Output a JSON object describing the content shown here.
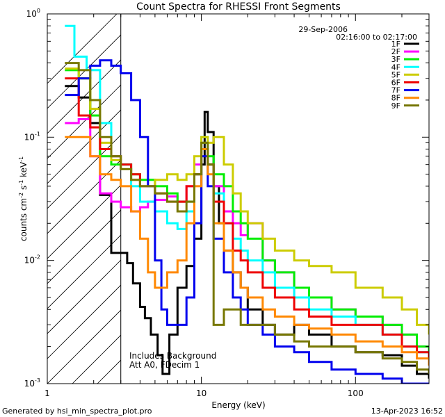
{
  "chart_data": {
    "type": "line",
    "title": "Count Spectra for RHESSI Front Segments",
    "xlabel": "Energy (keV)",
    "ylabel_parts": [
      "counts cm",
      "-2",
      " s",
      "-1",
      " keV",
      "-1"
    ],
    "x_scale": "log",
    "y_scale": "log",
    "xlim": [
      1,
      300
    ],
    "ylim": [
      0.001,
      1
    ],
    "x_ticks": [
      {
        "value": 1,
        "label": "1"
      },
      {
        "value": 10,
        "label": "10"
      },
      {
        "value": 100,
        "label": "100"
      }
    ],
    "y_ticks": [
      {
        "value": 1,
        "label": "10",
        "exp": "0"
      },
      {
        "value": 0.1,
        "label": "10",
        "exp": "-1"
      },
      {
        "value": 0.01,
        "label": "10",
        "exp": "-2"
      },
      {
        "value": 0.001,
        "label": "10",
        "exp": "-3"
      }
    ],
    "date_label": "29-Sep-2006",
    "time_range_label": "02:16:00 to 02:17:00",
    "annotations": [
      "Includes Background",
      "Att A0, FDecim 1"
    ],
    "hatched_region_max_energy": 3,
    "series": [
      {
        "name": "1F",
        "color": "#000000",
        "values": [
          [
            1.3,
            0.26
          ],
          [
            1.6,
            0.21
          ],
          [
            1.9,
            0.13
          ],
          [
            2.2,
            0.034
          ],
          [
            2.6,
            0.0115
          ],
          [
            3,
            0.0115
          ],
          [
            3.3,
            0.0095
          ],
          [
            3.6,
            0.0065
          ],
          [
            4,
            0.0042
          ],
          [
            4.3,
            0.0034
          ],
          [
            4.7,
            0.0025
          ],
          [
            5.2,
            0.0017
          ],
          [
            5.6,
            0.0012
          ],
          [
            6.2,
            0.0025
          ],
          [
            7,
            0.006
          ],
          [
            8,
            0.009
          ],
          [
            9,
            0.015
          ],
          [
            10,
            0.06
          ],
          [
            10.5,
            0.16
          ],
          [
            11,
            0.11
          ],
          [
            12,
            0.04
          ],
          [
            13,
            0.02
          ],
          [
            14,
            0.012
          ],
          [
            16,
            0.008
          ],
          [
            18,
            0.006
          ],
          [
            20,
            0.004
          ],
          [
            25,
            0.003
          ],
          [
            30,
            0.0025
          ],
          [
            40,
            0.003
          ],
          [
            50,
            0.0025
          ],
          [
            70,
            0.002
          ],
          [
            100,
            0.0018
          ],
          [
            150,
            0.0017
          ],
          [
            200,
            0.0014
          ],
          [
            250,
            0.0012
          ],
          [
            300,
            0.0011
          ]
        ]
      },
      {
        "name": "2F",
        "color": "#ff00ff",
        "values": [
          [
            1.3,
            0.13
          ],
          [
            1.6,
            0.14
          ],
          [
            1.9,
            0.07
          ],
          [
            2.2,
            0.035
          ],
          [
            2.6,
            0.03
          ],
          [
            3,
            0.027
          ],
          [
            3.5,
            0.025
          ],
          [
            4,
            0.027
          ],
          [
            4.5,
            0.03
          ],
          [
            5,
            0.031
          ],
          [
            6,
            0.033
          ],
          [
            7,
            0.03
          ],
          [
            8,
            0.04
          ],
          [
            9,
            0.06
          ],
          [
            10,
            0.09
          ],
          [
            11,
            0.06
          ],
          [
            12,
            0.04
          ],
          [
            14,
            0.025
          ],
          [
            16,
            0.02
          ],
          [
            18,
            0.016
          ],
          [
            20,
            0.02
          ],
          [
            25,
            0.01
          ],
          [
            30,
            0.008
          ],
          [
            40,
            0.005
          ],
          [
            50,
            0.005
          ],
          [
            70,
            0.004
          ],
          [
            100,
            0.0035
          ],
          [
            150,
            0.003
          ],
          [
            200,
            0.0025
          ],
          [
            250,
            0.002
          ],
          [
            300,
            0.0018
          ]
        ]
      },
      {
        "name": "3F",
        "color": "#00ee00",
        "values": [
          [
            1.3,
            0.35
          ],
          [
            1.6,
            0.3
          ],
          [
            1.9,
            0.15
          ],
          [
            2.2,
            0.07
          ],
          [
            2.6,
            0.06
          ],
          [
            3,
            0.06
          ],
          [
            3.5,
            0.05
          ],
          [
            4,
            0.045
          ],
          [
            5,
            0.04
          ],
          [
            6,
            0.035
          ],
          [
            7,
            0.03
          ],
          [
            8,
            0.03
          ],
          [
            9,
            0.05
          ],
          [
            10,
            0.09
          ],
          [
            11,
            0.07
          ],
          [
            12,
            0.05
          ],
          [
            14,
            0.04
          ],
          [
            16,
            0.025
          ],
          [
            18,
            0.02
          ],
          [
            20,
            0.015
          ],
          [
            25,
            0.01
          ],
          [
            30,
            0.008
          ],
          [
            40,
            0.006
          ],
          [
            50,
            0.005
          ],
          [
            70,
            0.004
          ],
          [
            100,
            0.0035
          ],
          [
            150,
            0.003
          ],
          [
            200,
            0.0025
          ],
          [
            250,
            0.002
          ],
          [
            300,
            0.0018
          ]
        ]
      },
      {
        "name": "4F",
        "color": "#00ffff",
        "values": [
          [
            1.3,
            0.8
          ],
          [
            1.5,
            0.45
          ],
          [
            1.8,
            0.35
          ],
          [
            2.2,
            0.13
          ],
          [
            2.6,
            0.07
          ],
          [
            3,
            0.06
          ],
          [
            3.5,
            0.04
          ],
          [
            4,
            0.03
          ],
          [
            5,
            0.025
          ],
          [
            6,
            0.02
          ],
          [
            7,
            0.018
          ],
          [
            8,
            0.025
          ],
          [
            9,
            0.05
          ],
          [
            10,
            0.1
          ],
          [
            11,
            0.06
          ],
          [
            12,
            0.035
          ],
          [
            14,
            0.02
          ],
          [
            16,
            0.015
          ],
          [
            18,
            0.012
          ],
          [
            20,
            0.01
          ],
          [
            25,
            0.008
          ],
          [
            30,
            0.006
          ],
          [
            40,
            0.005
          ],
          [
            50,
            0.004
          ],
          [
            70,
            0.0035
          ],
          [
            100,
            0.003
          ],
          [
            150,
            0.0025
          ],
          [
            200,
            0.002
          ],
          [
            250,
            0.0018
          ],
          [
            300,
            0.0015
          ]
        ]
      },
      {
        "name": "5F",
        "color": "#cccc00",
        "values": [
          [
            1.3,
            0.36
          ],
          [
            1.6,
            0.3
          ],
          [
            1.9,
            0.17
          ],
          [
            2.2,
            0.09
          ],
          [
            2.6,
            0.065
          ],
          [
            3,
            0.055
          ],
          [
            3.5,
            0.045
          ],
          [
            4,
            0.04
          ],
          [
            5,
            0.045
          ],
          [
            6,
            0.05
          ],
          [
            7,
            0.045
          ],
          [
            8,
            0.05
          ],
          [
            9,
            0.07
          ],
          [
            10,
            0.1
          ],
          [
            11,
            0.09
          ],
          [
            12,
            0.1
          ],
          [
            14,
            0.06
          ],
          [
            16,
            0.035
          ],
          [
            18,
            0.025
          ],
          [
            20,
            0.02
          ],
          [
            25,
            0.015
          ],
          [
            30,
            0.012
          ],
          [
            40,
            0.01
          ],
          [
            50,
            0.009
          ],
          [
            70,
            0.008
          ],
          [
            100,
            0.006
          ],
          [
            150,
            0.005
          ],
          [
            200,
            0.004
          ],
          [
            250,
            0.003
          ],
          [
            300,
            0.0025
          ]
        ]
      },
      {
        "name": "6F",
        "color": "#ee0000",
        "values": [
          [
            1.3,
            0.3
          ],
          [
            1.6,
            0.15
          ],
          [
            1.9,
            0.12
          ],
          [
            2.2,
            0.08
          ],
          [
            2.6,
            0.07
          ],
          [
            3,
            0.06
          ],
          [
            3.5,
            0.05
          ],
          [
            4,
            0.04
          ],
          [
            5,
            0.035
          ],
          [
            6,
            0.03
          ],
          [
            7,
            0.03
          ],
          [
            8,
            0.04
          ],
          [
            9,
            0.05
          ],
          [
            10,
            0.08
          ],
          [
            11,
            0.06
          ],
          [
            12,
            0.03
          ],
          [
            14,
            0.02
          ],
          [
            16,
            0.012
          ],
          [
            18,
            0.01
          ],
          [
            20,
            0.008
          ],
          [
            25,
            0.006
          ],
          [
            30,
            0.005
          ],
          [
            40,
            0.004
          ],
          [
            50,
            0.0035
          ],
          [
            70,
            0.003
          ],
          [
            100,
            0.003
          ],
          [
            150,
            0.0025
          ],
          [
            200,
            0.002
          ],
          [
            250,
            0.0018
          ],
          [
            300,
            0.0015
          ]
        ]
      },
      {
        "name": "7F",
        "color": "#0000ee",
        "values": [
          [
            1.3,
            0.22
          ],
          [
            1.6,
            0.3
          ],
          [
            1.9,
            0.38
          ],
          [
            2.2,
            0.42
          ],
          [
            2.6,
            0.38
          ],
          [
            3,
            0.33
          ],
          [
            3.5,
            0.2
          ],
          [
            4,
            0.1
          ],
          [
            4.5,
            0.04
          ],
          [
            5,
            0.01
          ],
          [
            5.5,
            0.004
          ],
          [
            6,
            0.003
          ],
          [
            7,
            0.003
          ],
          [
            8,
            0.005
          ],
          [
            9,
            0.02
          ],
          [
            10,
            0.07
          ],
          [
            11,
            0.04
          ],
          [
            12,
            0.015
          ],
          [
            14,
            0.008
          ],
          [
            16,
            0.005
          ],
          [
            18,
            0.004
          ],
          [
            20,
            0.003
          ],
          [
            25,
            0.0025
          ],
          [
            30,
            0.002
          ],
          [
            40,
            0.0018
          ],
          [
            50,
            0.0015
          ],
          [
            70,
            0.0013
          ],
          [
            100,
            0.0012
          ],
          [
            150,
            0.0011
          ],
          [
            200,
            0.001
          ],
          [
            250,
            0.001
          ],
          [
            300,
            0.001
          ]
        ]
      },
      {
        "name": "8F",
        "color": "#ff8800",
        "values": [
          [
            1.3,
            0.1
          ],
          [
            1.6,
            0.1
          ],
          [
            1.9,
            0.07
          ],
          [
            2.2,
            0.05
          ],
          [
            2.6,
            0.045
          ],
          [
            3,
            0.04
          ],
          [
            3.5,
            0.025
          ],
          [
            4,
            0.015
          ],
          [
            4.5,
            0.008
          ],
          [
            5,
            0.006
          ],
          [
            6,
            0.008
          ],
          [
            7,
            0.01
          ],
          [
            8,
            0.02
          ],
          [
            9,
            0.04
          ],
          [
            10,
            0.08
          ],
          [
            11,
            0.05
          ],
          [
            12,
            0.02
          ],
          [
            14,
            0.012
          ],
          [
            16,
            0.008
          ],
          [
            18,
            0.006
          ],
          [
            20,
            0.005
          ],
          [
            25,
            0.004
          ],
          [
            30,
            0.0035
          ],
          [
            40,
            0.003
          ],
          [
            50,
            0.0028
          ],
          [
            70,
            0.0025
          ],
          [
            100,
            0.0022
          ],
          [
            150,
            0.002
          ],
          [
            200,
            0.0018
          ],
          [
            250,
            0.0016
          ],
          [
            300,
            0.0014
          ]
        ]
      },
      {
        "name": "9F",
        "color": "#777700",
        "values": [
          [
            1.3,
            0.4
          ],
          [
            1.6,
            0.35
          ],
          [
            1.9,
            0.2
          ],
          [
            2.2,
            0.1
          ],
          [
            2.6,
            0.07
          ],
          [
            3,
            0.055
          ],
          [
            3.5,
            0.045
          ],
          [
            4,
            0.04
          ],
          [
            5,
            0.035
          ],
          [
            6,
            0.03
          ],
          [
            7,
            0.025
          ],
          [
            8,
            0.03
          ],
          [
            9,
            0.05
          ],
          [
            10,
            0.09
          ],
          [
            11,
            0.06
          ],
          [
            12,
            0.003
          ],
          [
            14,
            0.004
          ],
          [
            16,
            0.004
          ],
          [
            18,
            0.003
          ],
          [
            20,
            0.003
          ],
          [
            25,
            0.003
          ],
          [
            30,
            0.0025
          ],
          [
            40,
            0.0022
          ],
          [
            50,
            0.002
          ],
          [
            70,
            0.002
          ],
          [
            100,
            0.0018
          ],
          [
            150,
            0.0016
          ],
          [
            200,
            0.0015
          ],
          [
            250,
            0.0013
          ],
          [
            300,
            0.0012
          ]
        ]
      }
    ]
  },
  "footer": {
    "left": "Generated by hsi_min_spectra_plot.pro",
    "right": "13-Apr-2023 16:52"
  }
}
